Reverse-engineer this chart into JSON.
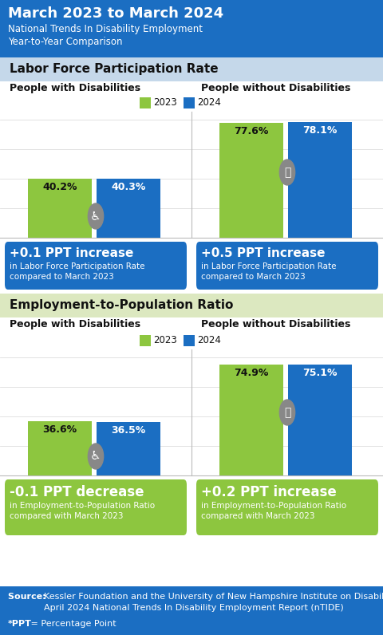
{
  "title_line1": "March 2023 to March 2024",
  "title_line2_a": "National Trends In Disability Employment",
  "title_line2_b": "Year-to-Year Comparison",
  "header_bg": "#1b6ec2",
  "section1_label": "Labor Force Participation Rate",
  "section2_label": "Employment-to-Population Ratio",
  "section1_bg": "#c5d8ea",
  "section2_bg": "#dce8c0",
  "left_col_label": "People with Disabilities",
  "right_col_label": "People without Disabilities",
  "color_2023": "#8DC63F",
  "color_2024": "#1b6ec2",
  "lfpr_dis_2023": 40.2,
  "lfpr_dis_2024": 40.3,
  "lfpr_nodis_2023": 77.6,
  "lfpr_nodis_2024": 78.1,
  "epr_dis_2023": 36.6,
  "epr_dis_2024": 36.5,
  "epr_nodis_2023": 74.9,
  "epr_nodis_2024": 75.1,
  "box_bg_blue": "#1b6ec2",
  "box_bg_green": "#8DC63F",
  "lfpr_dis_change_big": "+0.1 PPT increase",
  "lfpr_dis_change_small1": "in Labor Force Participation Rate",
  "lfpr_dis_change_small2": "compared to March 2023",
  "lfpr_nodis_change_big": "+0.5 PPT increase",
  "lfpr_nodis_change_small1": "in Labor Force Participation Rate",
  "lfpr_nodis_change_small2": "compared to March 2023",
  "epr_dis_change_big": "-0.1 PPT decrease",
  "epr_dis_change_small1": "in Employment-to-Population Ratio",
  "epr_dis_change_small2": "compared with March 2023",
  "epr_nodis_change_big": "+0.2 PPT increase",
  "epr_nodis_change_small1": "in Employment-to-Population Ratio",
  "epr_nodis_change_small2": "compared with March 2023",
  "source_bg": "#1b6ec2",
  "source_bold": "Source: ",
  "source_text1": "Kessler Foundation and the University of New Hampshire Institute on Disability",
  "source_text2": "April 2024 National Trends In Disability Employment Report (nTIDE)",
  "ppt_text": "*PPT",
  "ppt_text2": " = Percentage Point",
  "white": "#FFFFFF",
  "black": "#111111",
  "grid_color": "#CCCCCC",
  "icon_bg": "#888888"
}
